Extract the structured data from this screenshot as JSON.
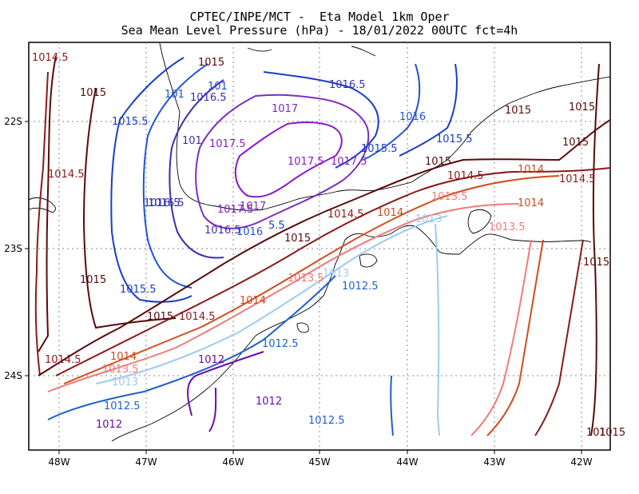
{
  "header": {
    "line1": "CPTEC/INPE/MCT -  Eta Model 1km Oper",
    "line2": "Sea Mean Level Pressure (hPa) - 18/01/2022 00UTC fct=4h"
  },
  "axes": {
    "lon_labels": [
      "48W",
      "47W",
      "46W",
      "45W",
      "44W",
      "43W",
      "42W"
    ],
    "lat_labels": [
      "22S",
      "23S",
      "24S"
    ]
  },
  "colors": {
    "1012": "#6a0dad",
    "1012.5": "#1e5fd0",
    "1013": "#9ecbf0",
    "1013.5": "#f07a7a",
    "1014": "#d24b1e",
    "1014.5": "#8b1a1a",
    "1015": "#5a0a0a",
    "1015.5": "#1a3cc8",
    "1016": "#2052d8",
    "1016.5": "#3a2fb0",
    "1017": "#7a2ec0",
    "1017.5": "#8a1ac8",
    "coast": "#000000",
    "grid": "#8a8a8a"
  },
  "contour_labels": [
    {
      "text": "1014.5",
      "level": "1014.5"
    },
    {
      "text": "1015",
      "level": "1015"
    },
    {
      "text": "1015.5",
      "level": "1015.5"
    },
    {
      "text": "1016.5",
      "level": "1016.5"
    },
    {
      "text": "101",
      "level": "1016"
    },
    {
      "text": "1016.5",
      "level": "1016.5"
    },
    {
      "text": "101",
      "level": "1016"
    },
    {
      "text": "1016.5",
      "level": "1016.5"
    },
    {
      "text": "1017",
      "level": "1017"
    },
    {
      "text": "101",
      "level": "1016.5"
    },
    {
      "text": "1017.5",
      "level": "1017.5"
    },
    {
      "text": "1016",
      "level": "1016"
    },
    {
      "text": "1015.5",
      "level": "1015.5"
    },
    {
      "text": "1015",
      "level": "1015"
    },
    {
      "text": "1015",
      "level": "1015"
    },
    {
      "text": "1015",
      "level": "1015"
    },
    {
      "text": "1015",
      "level": "1015"
    },
    {
      "text": "1015.5",
      "level": "1015.5"
    },
    {
      "text": "1017.5",
      "level": "1017.5"
    },
    {
      "text": "1017.5",
      "level": "1017.5"
    },
    {
      "text": "1016.5",
      "level": "1016.5"
    },
    {
      "text": "1014.5",
      "level": "1014.5"
    },
    {
      "text": "1016.5",
      "level": "1016.5"
    },
    {
      "text": "1017.5",
      "level": "1017.5"
    },
    {
      "text": "1017",
      "level": "1017"
    },
    {
      "text": "1015",
      "level": "1015"
    },
    {
      "text": "1014.5",
      "level": "1014.5"
    },
    {
      "text": "1014",
      "level": "1014"
    },
    {
      "text": "1013.5",
      "level": "1013.5"
    },
    {
      "text": "1014",
      "level": "1014"
    },
    {
      "text": "1014.5",
      "level": "1014.5"
    },
    {
      "text": "1014.5",
      "level": "1014.5"
    },
    {
      "text": "1014",
      "level": "1014"
    },
    {
      "text": "1013",
      "level": "1013"
    },
    {
      "text": "1013.5",
      "level": "1013.5"
    },
    {
      "text": "1016",
      "level": "1016"
    },
    {
      "text": "5.5",
      "level": "1015.5"
    },
    {
      "text": "1015",
      "level": "1015"
    },
    {
      "text": "1015",
      "level": "1015"
    },
    {
      "text": "1013.5",
      "level": "1013.5"
    },
    {
      "text": "1013",
      "level": "1013"
    },
    {
      "text": "1012.5",
      "level": "1012.5"
    },
    {
      "text": "1015",
      "level": "1015"
    },
    {
      "text": "1015.5",
      "level": "1015.5"
    },
    {
      "text": "1014",
      "level": "1014"
    },
    {
      "text": "1015",
      "level": "1015"
    },
    {
      "text": "1014.5",
      "level": "1014.5"
    },
    {
      "text": "1014",
      "level": "1014"
    },
    {
      "text": "1012.5",
      "level": "1012.5"
    },
    {
      "text": "1014.5",
      "level": "1014.5"
    },
    {
      "text": "1013.5",
      "level": "1013.5"
    },
    {
      "text": "1012",
      "level": "1012"
    },
    {
      "text": "1013",
      "level": "1013"
    },
    {
      "text": "1012",
      "level": "1012"
    },
    {
      "text": "1012.5",
      "level": "1012.5"
    },
    {
      "text": "1012.5",
      "level": "1012.5"
    },
    {
      "text": "1012",
      "level": "1012"
    },
    {
      "text": "1015",
      "level": "1015"
    },
    {
      "text": "101",
      "level": "1015"
    }
  ]
}
